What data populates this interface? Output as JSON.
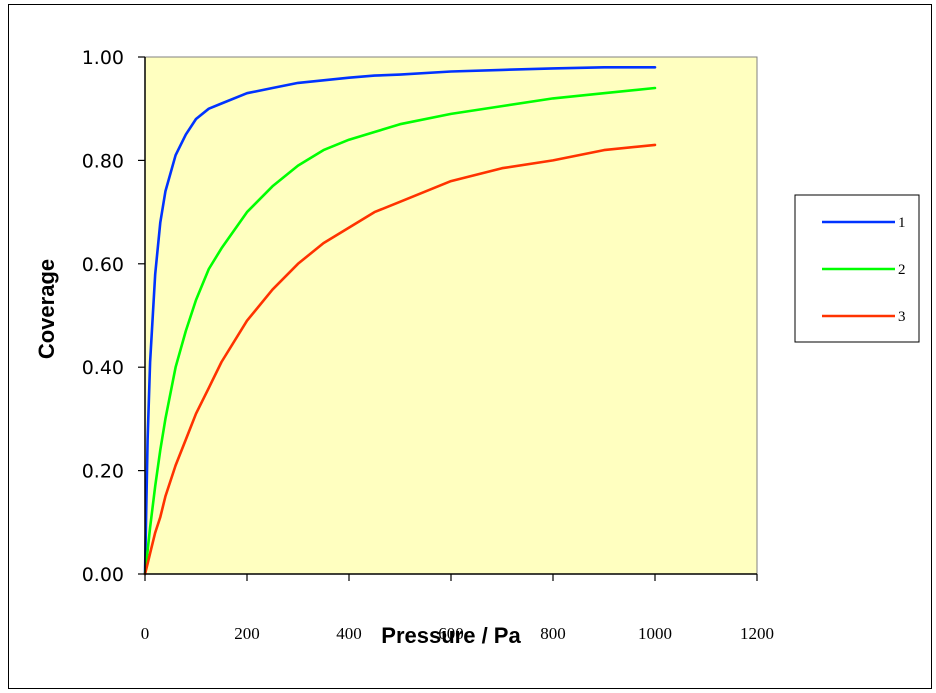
{
  "chart_data": {
    "type": "line",
    "xlabel": "Pressure / Pa",
    "ylabel": "Coverage",
    "xlim": [
      0,
      1200
    ],
    "ylim": [
      0,
      1
    ],
    "xticks": [
      "0",
      "200",
      "400",
      "600",
      "800",
      "1000",
      "1200"
    ],
    "yticks": [
      "0.00",
      "0.20",
      "0.40",
      "0.60",
      "0.80",
      "1.00"
    ],
    "plot_background": "#FFFFC0",
    "grid": false,
    "legend_position": "right",
    "x": [
      0,
      5,
      10,
      20,
      30,
      40,
      60,
      80,
      100,
      125,
      150,
      200,
      250,
      300,
      350,
      400,
      450,
      500,
      600,
      700,
      800,
      900,
      1000
    ],
    "series": [
      {
        "name": "1",
        "color": "#0033FF",
        "values": [
          0,
          0.26,
          0.41,
          0.58,
          0.68,
          0.74,
          0.81,
          0.85,
          0.88,
          0.9,
          0.91,
          0.93,
          0.94,
          0.95,
          0.955,
          0.96,
          0.964,
          0.966,
          0.972,
          0.975,
          0.978,
          0.98,
          0.98
        ]
      },
      {
        "name": "2",
        "color": "#00FF00",
        "values": [
          0,
          0.045,
          0.09,
          0.17,
          0.24,
          0.3,
          0.4,
          0.47,
          0.53,
          0.59,
          0.63,
          0.7,
          0.75,
          0.79,
          0.82,
          0.84,
          0.855,
          0.87,
          0.89,
          0.905,
          0.92,
          0.93,
          0.94
        ]
      },
      {
        "name": "3",
        "color": "#FF3300",
        "values": [
          0,
          0.02,
          0.04,
          0.08,
          0.11,
          0.15,
          0.21,
          0.26,
          0.31,
          0.36,
          0.41,
          0.49,
          0.55,
          0.6,
          0.64,
          0.67,
          0.7,
          0.72,
          0.76,
          0.785,
          0.8,
          0.82,
          0.83
        ]
      }
    ]
  }
}
